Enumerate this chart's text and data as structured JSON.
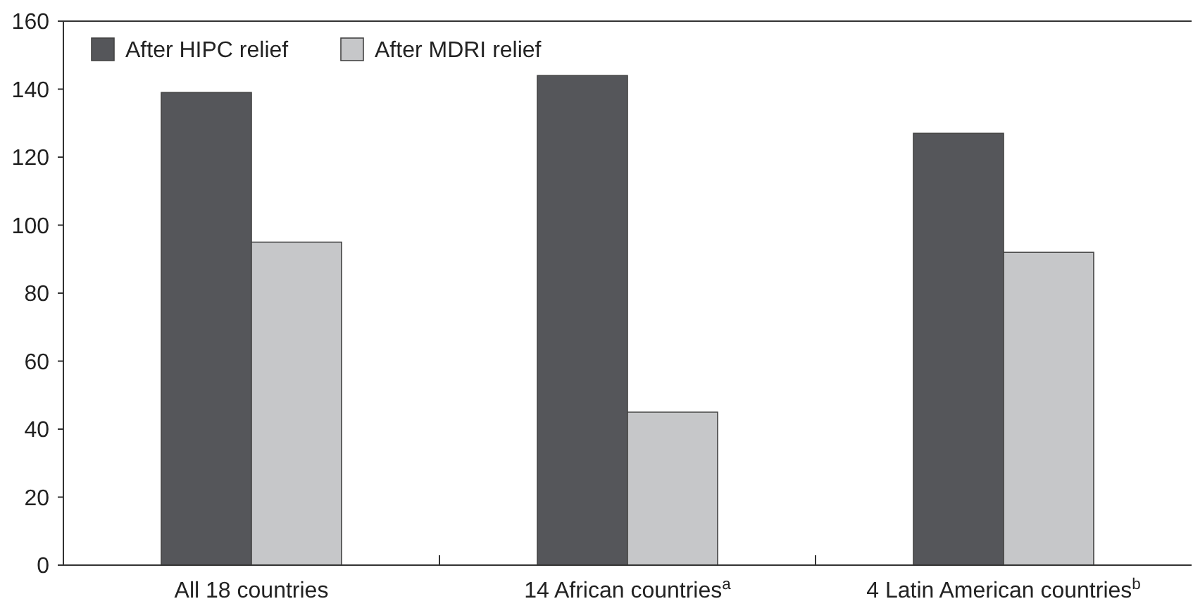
{
  "chart_data": {
    "type": "bar",
    "categories": [
      "All 18 countries",
      "14 African countries$^{a}$",
      "4 Latin American countries$^{b}$"
    ],
    "series": [
      {
        "name": "After HIPC relief",
        "color": "#55565a",
        "values": [
          139,
          144,
          127
        ]
      },
      {
        "name": "After MDRI relief",
        "color": "#c6c7c9",
        "values": [
          95,
          45,
          92
        ]
      }
    ],
    "ylim": [
      0,
      160
    ],
    "yticks": [
      0,
      20,
      40,
      60,
      80,
      100,
      120,
      140,
      160
    ],
    "grid": false,
    "legend": "top left"
  }
}
